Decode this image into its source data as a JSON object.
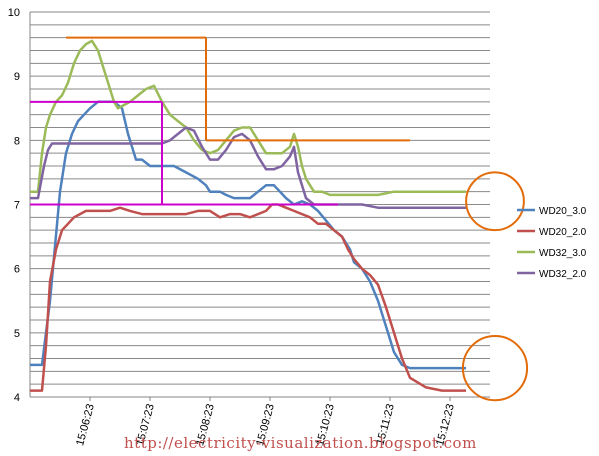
{
  "chart_data": {
    "type": "line",
    "title": "",
    "xlabel": "",
    "ylabel": "",
    "ylim": [
      4,
      10
    ],
    "y_ticks": [
      "4",
      "5",
      "6",
      "7",
      "8",
      "9",
      "10"
    ],
    "x_ticks": [
      "15:06:23",
      "15:07:23",
      "15:08:23",
      "15:09:23",
      "15:10:23",
      "15:11:23",
      "15:12:23"
    ],
    "x_tick_seconds": [
      0,
      60,
      120,
      180,
      240,
      300,
      360
    ],
    "xlim": [
      -60,
      400
    ],
    "grid": true,
    "grid_step": 0.2,
    "legend_position": "right",
    "series": [
      {
        "name": "WD20_3.0",
        "color": "#4f81bd",
        "x": [
          -60,
          -48,
          -40,
          -30,
          -24,
          -18,
          -12,
          -6,
          0,
          8,
          16,
          24,
          32,
          38,
          44,
          46,
          52,
          60,
          72,
          84,
          96,
          108,
          116,
          120,
          124,
          130,
          136,
          144,
          152,
          160,
          168,
          176,
          184,
          190,
          196,
          204,
          212,
          220,
          228,
          236,
          244,
          252,
          260,
          264,
          272,
          280,
          288,
          296,
          304,
          312,
          320,
          336,
          352,
          368,
          376
        ],
        "y": [
          4.5,
          4.5,
          5.5,
          7.2,
          7.8,
          8.1,
          8.3,
          8.4,
          8.5,
          8.6,
          8.6,
          8.6,
          8.5,
          8.1,
          7.8,
          7.7,
          7.7,
          7.6,
          7.6,
          7.6,
          7.5,
          7.4,
          7.3,
          7.2,
          7.2,
          7.2,
          7.15,
          7.1,
          7.1,
          7.1,
          7.2,
          7.3,
          7.3,
          7.2,
          7.1,
          7.0,
          7.05,
          7.0,
          6.9,
          6.75,
          6.6,
          6.5,
          6.3,
          6.1,
          6.0,
          5.8,
          5.5,
          5.1,
          4.7,
          4.5,
          4.45,
          4.45,
          4.45,
          4.45,
          4.45
        ]
      },
      {
        "name": "WD20_2.0",
        "color": "#c0504d",
        "x": [
          -60,
          -48,
          -44,
          -40,
          -34,
          -28,
          -22,
          -16,
          -10,
          -4,
          2,
          10,
          20,
          30,
          40,
          52,
          60,
          72,
          84,
          96,
          108,
          120,
          130,
          140,
          150,
          160,
          168,
          176,
          182,
          188,
          196,
          204,
          212,
          220,
          228,
          236,
          244,
          252,
          258,
          264,
          272,
          280,
          288,
          296,
          304,
          312,
          320,
          336,
          352,
          368,
          376
        ],
        "y": [
          4.1,
          4.1,
          4.8,
          5.8,
          6.3,
          6.6,
          6.7,
          6.8,
          6.85,
          6.9,
          6.9,
          6.9,
          6.9,
          6.95,
          6.9,
          6.85,
          6.85,
          6.85,
          6.85,
          6.85,
          6.9,
          6.9,
          6.8,
          6.85,
          6.85,
          6.8,
          6.85,
          6.9,
          7.0,
          7.0,
          6.95,
          6.9,
          6.85,
          6.8,
          6.7,
          6.7,
          6.6,
          6.5,
          6.3,
          6.15,
          6.0,
          5.9,
          5.75,
          5.4,
          5.0,
          4.6,
          4.3,
          4.15,
          4.1,
          4.1,
          4.1
        ]
      },
      {
        "name": "WD32_3.0",
        "color": "#9bbb59",
        "x": [
          -60,
          -52,
          -48,
          -44,
          -40,
          -34,
          -28,
          -22,
          -16,
          -10,
          -4,
          2,
          8,
          14,
          20,
          24,
          28,
          34,
          40,
          48,
          56,
          64,
          72,
          80,
          88,
          96,
          104,
          112,
          120,
          128,
          136,
          144,
          152,
          160,
          168,
          176,
          184,
          192,
          200,
          204,
          208,
          212,
          216,
          224,
          232,
          240,
          256,
          272,
          288,
          304,
          320,
          336,
          352,
          368,
          376
        ],
        "y": [
          7.2,
          7.2,
          7.8,
          8.2,
          8.4,
          8.6,
          8.7,
          8.9,
          9.2,
          9.4,
          9.5,
          9.55,
          9.4,
          9.1,
          8.8,
          8.6,
          8.5,
          8.55,
          8.6,
          8.7,
          8.8,
          8.85,
          8.6,
          8.4,
          8.3,
          8.2,
          8.0,
          7.85,
          7.8,
          7.85,
          8.0,
          8.15,
          8.2,
          8.2,
          8.0,
          7.8,
          7.8,
          7.8,
          7.9,
          8.1,
          7.9,
          7.6,
          7.4,
          7.2,
          7.2,
          7.15,
          7.15,
          7.15,
          7.15,
          7.2,
          7.2,
          7.2,
          7.2,
          7.2,
          7.2
        ]
      },
      {
        "name": "WD32_2.0",
        "color": "#8064a2",
        "x": [
          -60,
          -52,
          -46,
          -42,
          -38,
          -32,
          -26,
          -20,
          -12,
          0,
          16,
          32,
          48,
          64,
          72,
          80,
          88,
          96,
          104,
          112,
          120,
          128,
          136,
          144,
          152,
          160,
          168,
          176,
          184,
          192,
          200,
          204,
          208,
          212,
          216,
          224,
          232,
          240,
          256,
          272,
          288,
          304,
          320,
          336,
          352,
          368,
          376
        ],
        "y": [
          7.1,
          7.1,
          7.6,
          7.85,
          7.95,
          7.95,
          7.95,
          7.95,
          7.95,
          7.95,
          7.95,
          7.95,
          7.95,
          7.95,
          7.95,
          8.0,
          8.1,
          8.2,
          8.15,
          7.9,
          7.7,
          7.7,
          7.85,
          8.05,
          8.1,
          8.0,
          7.75,
          7.55,
          7.55,
          7.6,
          7.75,
          7.9,
          7.5,
          7.3,
          7.1,
          7.0,
          7.0,
          7.0,
          7.0,
          7.0,
          6.95,
          6.95,
          6.95,
          6.95,
          6.95,
          6.95,
          6.95
        ]
      }
    ],
    "annotations": [
      {
        "kind": "hline",
        "color": "#e36c0a",
        "y": 9.6,
        "x": [
          -24,
          116
        ]
      },
      {
        "kind": "vline",
        "color": "#e36c0a",
        "x": 116,
        "y": [
          8.0,
          9.6
        ]
      },
      {
        "kind": "hline",
        "color": "#e36c0a",
        "y": 8.0,
        "x": [
          116,
          320
        ]
      },
      {
        "kind": "hline",
        "color": "#cc00cc",
        "y": 8.6,
        "x": [
          -60,
          72
        ]
      },
      {
        "kind": "vline",
        "color": "#cc00cc",
        "x": 72,
        "y": [
          7.0,
          8.6
        ]
      },
      {
        "kind": "hline",
        "color": "#cc00cc",
        "y": 7.0,
        "x": [
          -60,
          248
        ]
      },
      {
        "kind": "circle",
        "color": "#e36c0a",
        "x": 405,
        "y": 7.05,
        "r": 0.45
      },
      {
        "kind": "circle",
        "color": "#e36c0a",
        "x": 405,
        "y": 4.45,
        "r": 0.5
      }
    ]
  },
  "watermark": "http://electricity-visualization.blogspot.com"
}
